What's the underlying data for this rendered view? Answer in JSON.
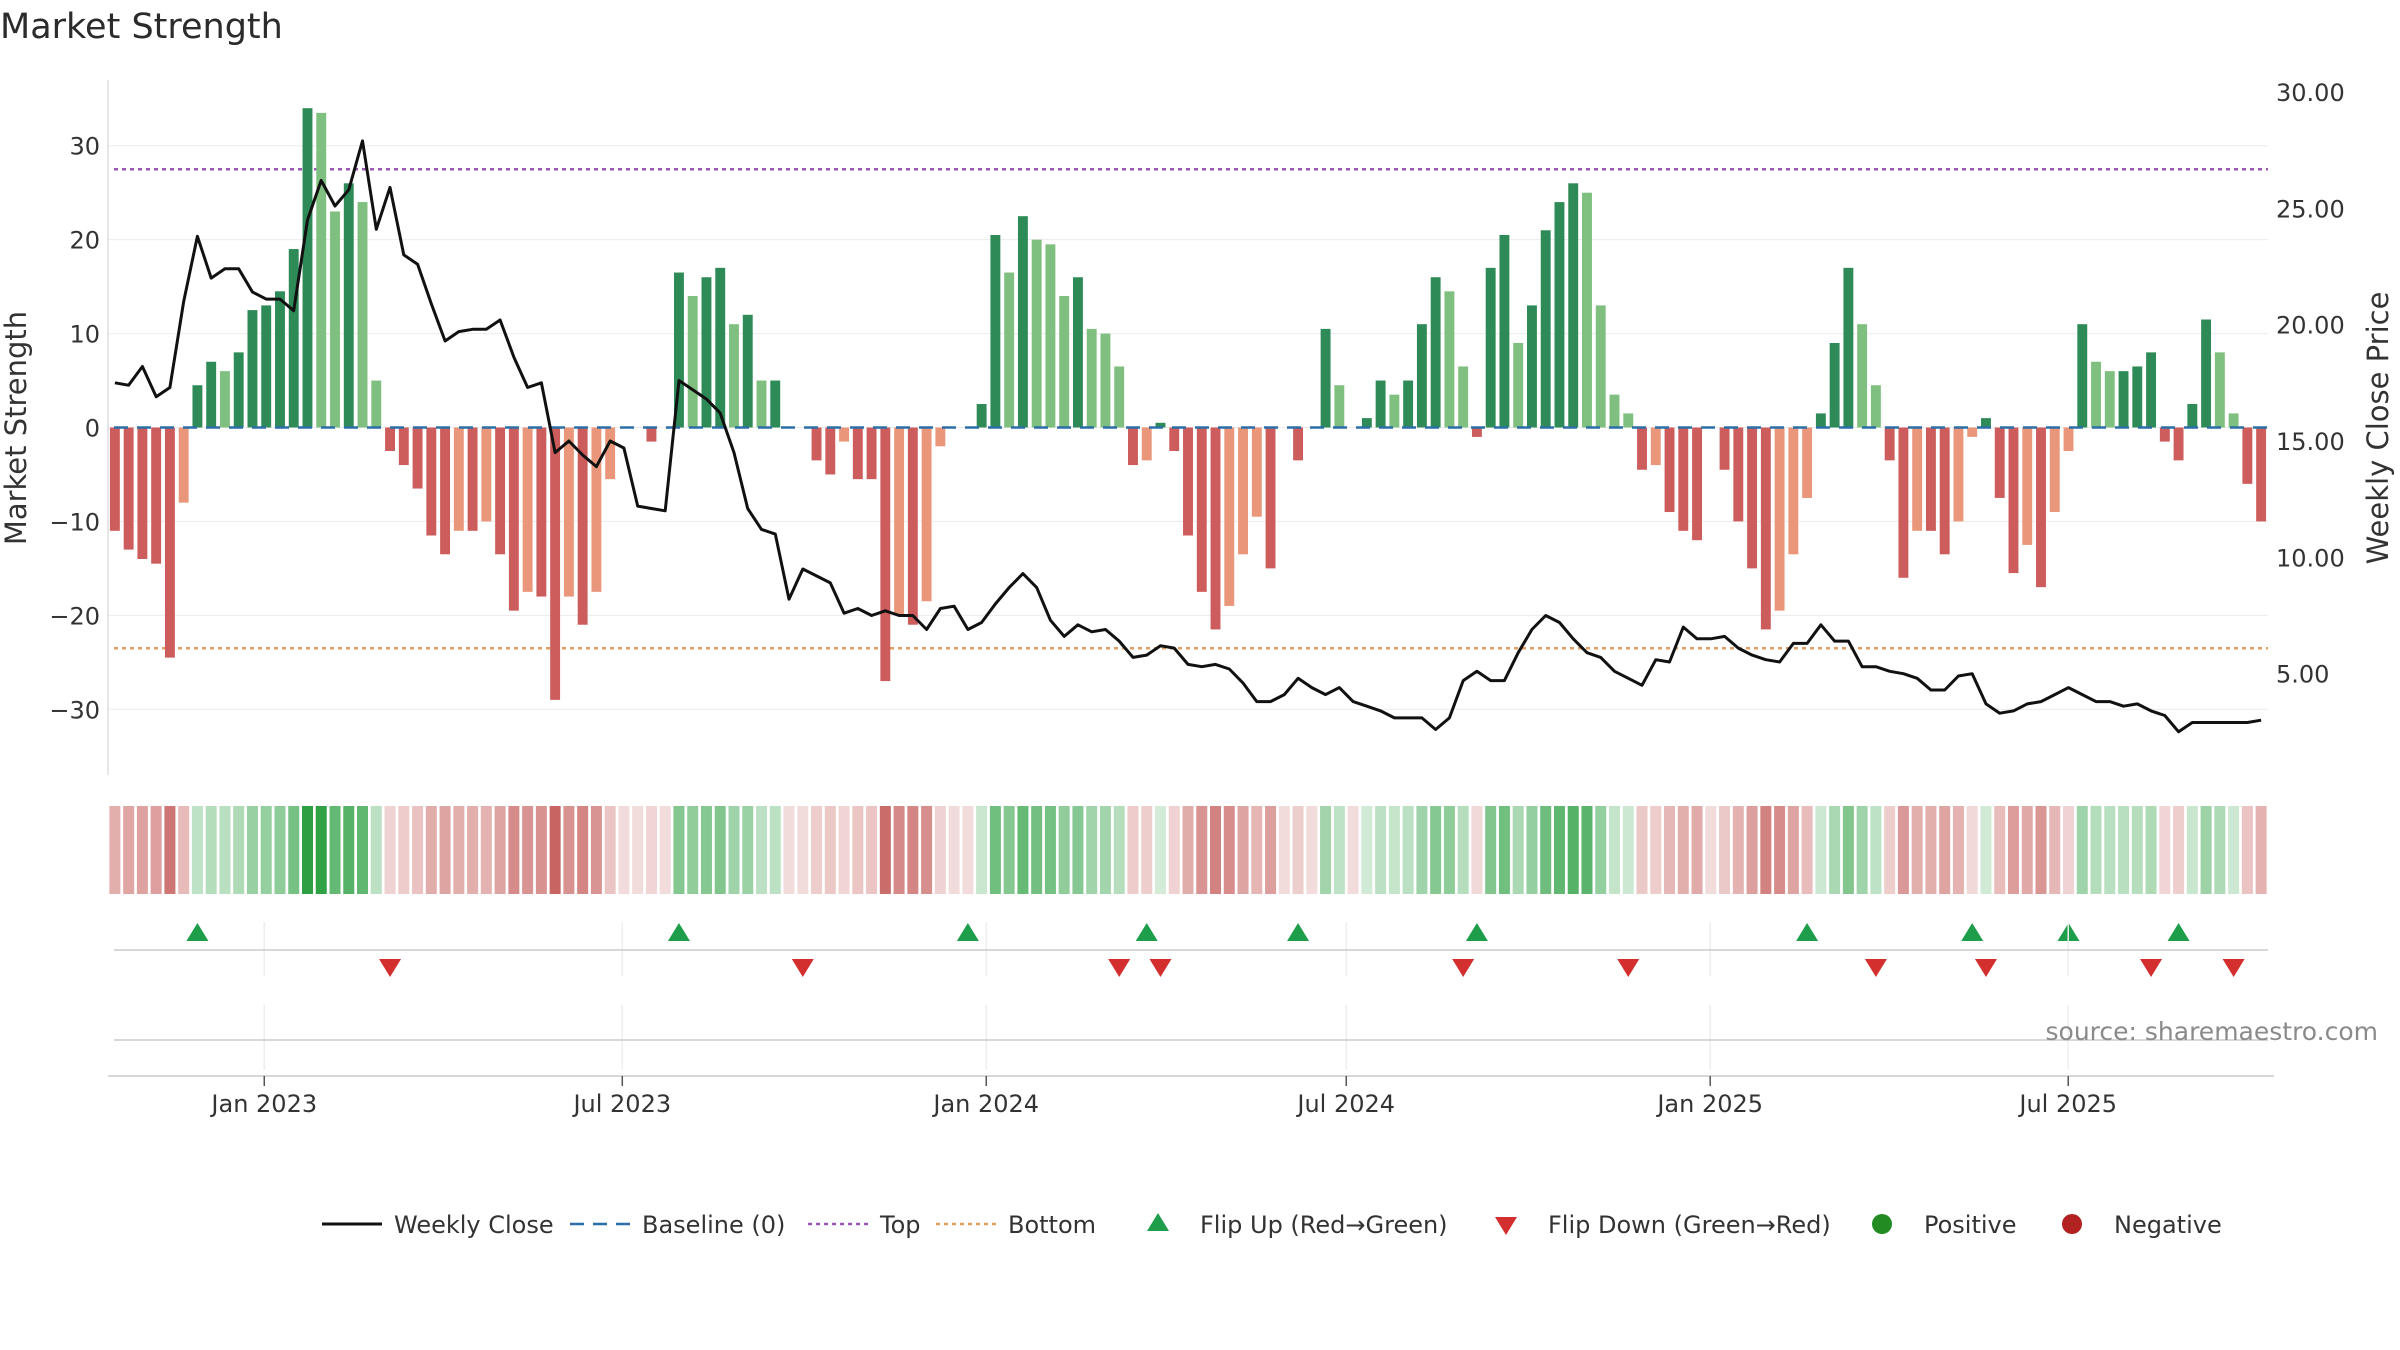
{
  "chart_data": {
    "type": "bar",
    "title": "Market Strength",
    "ylabel": "Market Strength",
    "y2label": "Weekly Close Price",
    "ylim": [
      -37,
      37
    ],
    "y2lim": [
      0,
      30
    ],
    "yticks": [
      30,
      20,
      10,
      0,
      -10,
      -20,
      -30
    ],
    "ytick_labels": [
      "30",
      "20",
      "10",
      "0",
      "−10",
      "−20",
      "−30"
    ],
    "y2ticks": [
      30,
      25,
      20,
      15,
      10,
      5
    ],
    "y2tick_labels": [
      "30.00",
      "25.00",
      "20.00",
      "15.00",
      "10.00",
      "5.00"
    ],
    "x_start": "2022-10-14",
    "x_end": "2025-10-10",
    "week_step": 1,
    "x_ticks": [
      {
        "date": "2023-01-01",
        "label": "Jan 2023"
      },
      {
        "date": "2023-07-01",
        "label": "Jul 2023"
      },
      {
        "date": "2024-01-01",
        "label": "Jan 2024"
      },
      {
        "date": "2024-07-01",
        "label": "Jul 2024"
      },
      {
        "date": "2025-01-01",
        "label": "Jan 2025"
      },
      {
        "date": "2025-07-01",
        "label": "Jul 2025"
      }
    ],
    "top_line": 27.5,
    "bottom_line": -23.5,
    "baseline": 0,
    "strength": [
      -11,
      -13,
      -14,
      -14.5,
      -24.5,
      -8,
      4.5,
      7,
      6,
      8,
      12.5,
      13,
      14.5,
      19,
      34,
      33.5,
      23,
      26,
      24,
      5,
      -2.5,
      -4,
      -6.5,
      -11.5,
      -13.5,
      -11,
      -11,
      -10,
      -13.5,
      -19.5,
      -17.5,
      -18,
      -29,
      -18,
      -21,
      -17.5,
      -5.5,
      0,
      0,
      -1.5,
      0,
      16.5,
      14,
      16,
      17,
      11,
      12,
      5,
      5,
      0,
      0,
      -3.5,
      -5,
      -1.5,
      -5.5,
      -5.5,
      -27,
      -20,
      -21,
      -18.5,
      -2,
      0,
      0,
      2.5,
      20.5,
      16.5,
      22.5,
      20,
      19.5,
      14,
      16,
      10.5,
      10,
      6.5,
      -4,
      -3.5,
      0.5,
      -2.5,
      -11.5,
      -17.5,
      -21.5,
      -19,
      -13.5,
      -9.5,
      -15,
      0,
      -3.5,
      0,
      10.5,
      4.5,
      0,
      1,
      5,
      3.5,
      5,
      11,
      16,
      14.5,
      6.5,
      -1,
      17,
      20.5,
      9,
      13,
      21,
      24,
      26,
      25,
      13,
      3.5,
      1.5,
      -4.5,
      -4,
      -9,
      -11,
      -12,
      0,
      -4.5,
      -10,
      -15,
      -21.5,
      -19.5,
      -13.5,
      -7.5,
      1.5,
      9,
      17,
      11,
      4.5,
      -3.5,
      -16,
      -11,
      -11,
      -13.5,
      -10,
      -1,
      1,
      -7.5,
      -15.5,
      -12.5,
      -17,
      -9,
      -2.5,
      11,
      7,
      6,
      6,
      6.5,
      8,
      -1.5,
      -3.5,
      2.5,
      11.5,
      8,
      1.5,
      -6,
      -10
    ],
    "price": [
      17.5,
      17.4,
      18.2,
      16.9,
      17.3,
      21,
      23.8,
      22,
      22.4,
      22.4,
      21.4,
      21.1,
      21.1,
      20.6,
      24.5,
      26.2,
      25.1,
      25.8,
      27.9,
      24.1,
      25.9,
      23,
      22.6,
      20.9,
      19.3,
      19.7,
      19.8,
      19.8,
      20.2,
      18.6,
      17.3,
      17.5,
      14.5,
      15,
      14.4,
      13.9,
      15,
      14.7,
      12.2,
      12.1,
      12,
      17.6,
      17.2,
      16.8,
      16.2,
      14.5,
      12.1,
      11.2,
      11,
      8.2,
      9.5,
      9.2,
      8.9,
      7.6,
      7.8,
      7.5,
      7.7,
      7.5,
      7.5,
      6.9,
      7.8,
      7.9,
      6.9,
      7.2,
      8,
      8.7,
      9.3,
      8.7,
      7.3,
      6.6,
      7.1,
      6.8,
      6.9,
      6.4,
      5.7,
      5.8,
      6.2,
      6.1,
      5.4,
      5.3,
      5.4,
      5.2,
      4.6,
      3.8,
      3.8,
      4.1,
      4.8,
      4.4,
      4.1,
      4.4,
      3.8,
      3.6,
      3.4,
      3.1,
      3.1,
      3.1,
      2.6,
      3.1,
      4.7,
      5.1,
      4.7,
      4.7,
      5.9,
      6.9,
      7.5,
      7.2,
      6.5,
      5.9,
      5.7,
      5.1,
      4.8,
      4.5,
      5.6,
      5.5,
      7,
      6.5,
      6.5,
      6.6,
      6.1,
      5.8,
      5.6,
      5.5,
      6.3,
      6.3,
      7.1,
      6.4,
      6.4,
      5.3,
      5.3,
      5.1,
      5,
      4.8,
      4.3,
      4.3,
      4.9,
      5,
      3.7,
      3.3,
      3.4,
      3.7,
      3.8,
      4.1,
      4.4,
      4.1,
      3.8,
      3.8,
      3.6,
      3.7,
      3.4,
      3.2,
      2.5,
      2.9,
      2.9,
      2.9,
      2.9,
      2.9,
      3
    ],
    "flip_up_weeks": [
      6,
      41,
      62,
      75,
      86,
      99,
      123,
      135,
      142,
      150
    ],
    "flip_down_weeks": [
      20,
      50,
      73,
      76,
      98,
      110,
      128,
      136,
      148,
      154
    ],
    "series": [
      {
        "name": "Weekly Close",
        "color": "#111111"
      },
      {
        "name": "Baseline (0)",
        "color": "#2c6ea8"
      },
      {
        "name": "Top",
        "color": "#9b59b6"
      },
      {
        "name": "Bottom",
        "color": "#e0a060"
      },
      {
        "name": "Flip Up (Red→Green)",
        "color": "#1e9e4a"
      },
      {
        "name": "Flip Down (Green→Red)",
        "color": "#d32f2f"
      },
      {
        "name": "Positive",
        "color": "#228b22"
      },
      {
        "name": "Negative",
        "color": "#b22222"
      }
    ],
    "colors": {
      "pos_strong": "#2e8b57",
      "pos_weak": "#7fbf7f",
      "neg_strong": "#cd5c5c",
      "neg_weak": "#e9967a",
      "strip_green": "#2ea043",
      "strip_red": "#c0504d"
    }
  },
  "source": "source: sharemaestro.com"
}
